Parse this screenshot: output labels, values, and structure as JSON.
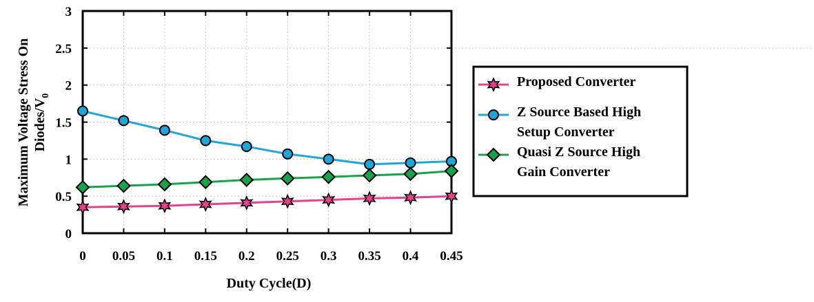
{
  "chart_data": {
    "type": "line",
    "title": "",
    "xlabel": "Duty Cycle(D)",
    "ylabel_lines": [
      "Maximum Voltage Stress On",
      "Diodes/V"
    ],
    "ylabel_subscript": "0",
    "x": [
      0,
      0.05,
      0.1,
      0.15,
      0.2,
      0.25,
      0.3,
      0.35,
      0.4,
      0.45
    ],
    "x_tick_labels": [
      "0",
      "0.05",
      "0.1",
      "0.15",
      "0.2",
      "0.25",
      "0.3",
      "0.35",
      "0.4",
      "0.45"
    ],
    "y_ticks": [
      0,
      0.5,
      1,
      1.5,
      2,
      2.5,
      3
    ],
    "y_tick_labels": [
      "0",
      "0.5",
      "1",
      "1.5",
      "2",
      "2.5",
      "3"
    ],
    "xlim": [
      0,
      0.45
    ],
    "ylim": [
      0,
      3
    ],
    "grid": true,
    "legend_position": "right",
    "series": [
      {
        "name_lines": [
          "Proposed Converter"
        ],
        "color": "#e8408e",
        "marker": "star",
        "values": [
          0.35,
          0.36,
          0.37,
          0.39,
          0.41,
          0.43,
          0.45,
          0.47,
          0.48,
          0.5
        ]
      },
      {
        "name_lines": [
          "Z Source Based High",
          "Setup Converter"
        ],
        "color": "#1fa5d8",
        "marker": "circle",
        "values": [
          1.65,
          1.52,
          1.39,
          1.25,
          1.17,
          1.07,
          1.0,
          0.93,
          0.95,
          0.97
        ]
      },
      {
        "name_lines": [
          "Quasi Z Source High",
          "Gain Converter"
        ],
        "color": "#1aa24a",
        "marker": "diamond",
        "values": [
          0.62,
          0.64,
          0.66,
          0.69,
          0.72,
          0.74,
          0.76,
          0.78,
          0.8,
          0.84
        ]
      }
    ]
  }
}
